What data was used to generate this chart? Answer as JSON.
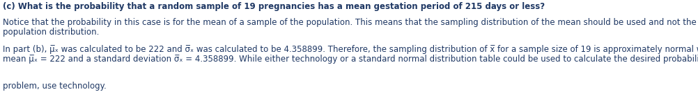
{
  "bg_color": "#ffffff",
  "text_color": "#1f3864",
  "figsize": [
    10.02,
    1.46
  ],
  "dpi": 100,
  "line1": "(c) What is the probability that a random sample of 19 pregnancies has a mean gestation period of 215 days or less?",
  "line2": "Notice that the probability in this case is for the mean of a sample of the population. This means that the sampling distribution of the mean should be used and not the",
  "line3": "population distribution.",
  "line4": "In part (b), μ̅ₓ was calculated to be 222 and σ̅ₓ was calculated to be 4.358899. Therefore, the sampling distribution of x̅ for a sample size of 19 is approximately normal with a",
  "line5": "mean μ̅ₓ = 222 and a standard deviation σ̅ₓ = 4.358899. While either technology or a standard normal distribution table could be used to calculate the desired probability, in thi",
  "line6": "problem, use technology.",
  "font_size": 8.5
}
